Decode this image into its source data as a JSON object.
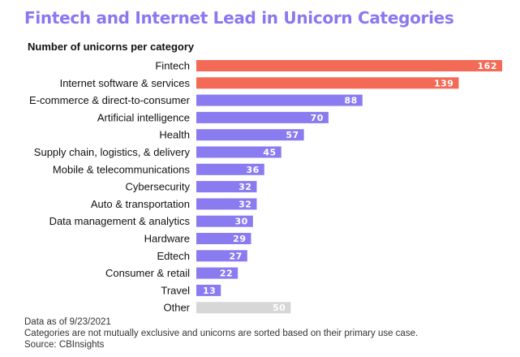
{
  "title": "Fintech and Internet Lead in Unicorn Categories",
  "subtitle": "Number of unicorns per category",
  "notes": [
    "Data as of 9/23/2021",
    "Categories are not mutually exclusive and unicorns are sorted based on their primary use case.",
    "Source: CBInsights"
  ],
  "colors": {
    "highlight": "#f36a56",
    "default": "#8a7cf0",
    "other": "#d7d7d7",
    "title": "#8b78f0"
  },
  "chart_data": {
    "type": "bar",
    "orientation": "horizontal",
    "title": "Fintech and Internet Lead in Unicorn Categories",
    "subtitle": "Number of unicorns per category",
    "categories": [
      "Fintech",
      "Internet software & services",
      "E-commerce & direct-to-consumer",
      "Artificial intelligence",
      "Health",
      "Supply chain, logistics, & delivery",
      "Mobile & telecommunications",
      "Cybersecurity",
      "Auto & transportation",
      "Data management & analytics",
      "Hardware",
      "Edtech",
      "Consumer & retail",
      "Travel",
      "Other"
    ],
    "values": [
      162,
      139,
      88,
      70,
      57,
      45,
      36,
      32,
      32,
      30,
      29,
      27,
      22,
      13,
      50
    ],
    "bar_colors": [
      "highlight",
      "highlight",
      "default",
      "default",
      "default",
      "default",
      "default",
      "default",
      "default",
      "default",
      "default",
      "default",
      "default",
      "default",
      "other"
    ],
    "xlim": [
      0,
      162
    ],
    "grid": false,
    "legend": "none"
  }
}
